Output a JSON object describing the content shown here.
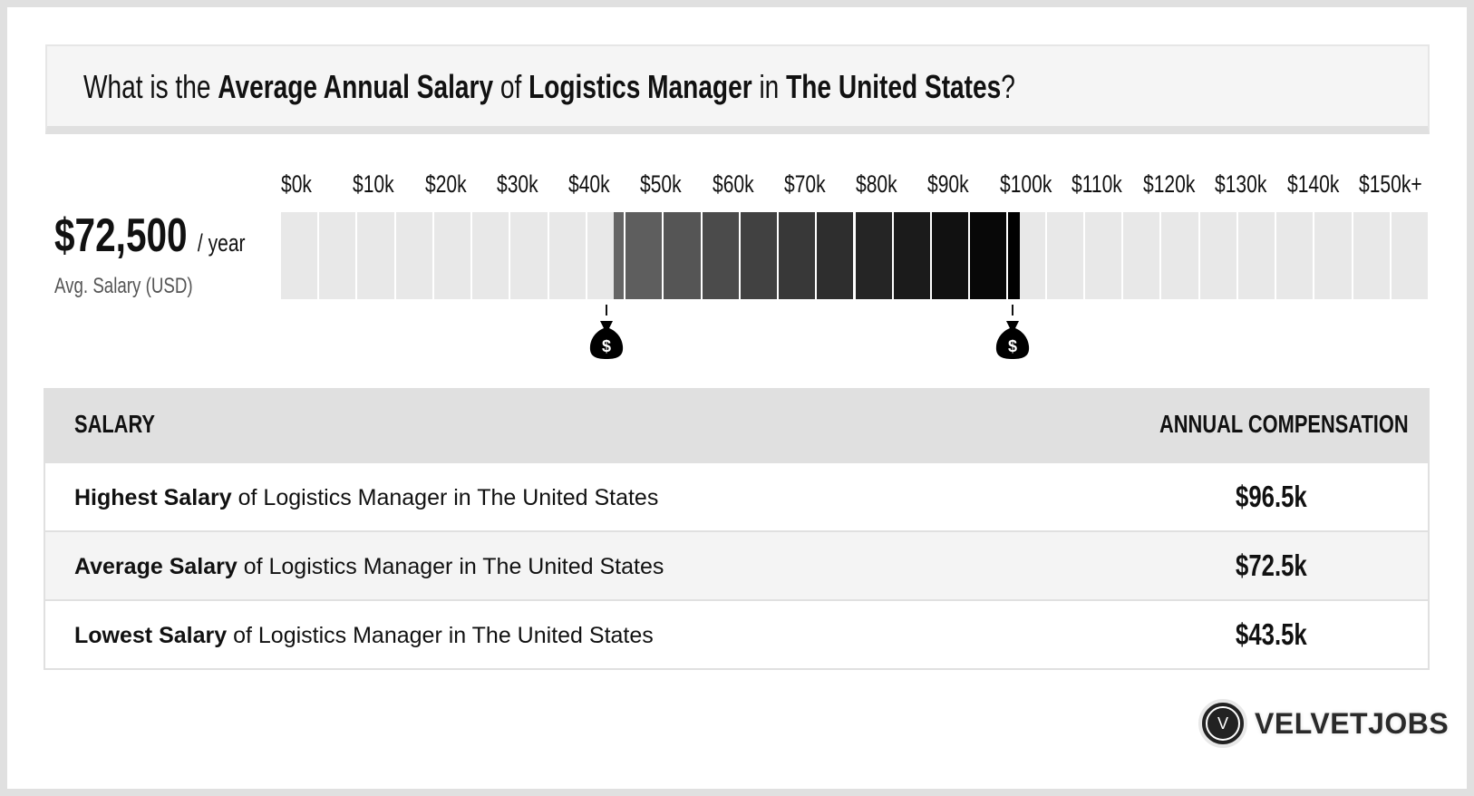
{
  "title": {
    "p1": "What is the ",
    "b1": "Average Annual Salary",
    "p2": " of ",
    "b2": "Logistics Manager",
    "p3": " in ",
    "b3": "The United States",
    "p4": "?"
  },
  "summary": {
    "value": "$72,500",
    "unit": "/ year",
    "label": "Avg. Salary (USD)"
  },
  "chart_data": {
    "type": "range-bar",
    "tick_labels": [
      "$0k",
      "$10k",
      "$20k",
      "$30k",
      "$40k",
      "$50k",
      "$60k",
      "$70k",
      "$80k",
      "$90k",
      "$100k",
      "$110k",
      "$120k",
      "$130k",
      "$140k",
      "$150k+"
    ],
    "xlim": [
      0,
      150000
    ],
    "segment_step": 5000,
    "range": {
      "low": 43500,
      "high": 96500
    },
    "gradient": [
      "#666666",
      "#000000"
    ],
    "markers": [
      {
        "value": 43500,
        "icon": "money-bag-icon"
      },
      {
        "value": 96500,
        "icon": "money-bag-icon"
      }
    ]
  },
  "table": {
    "headers": [
      "SALARY",
      "ANNUAL COMPENSATION"
    ],
    "rows": [
      {
        "bold": "Highest Salary",
        "rest": " of Logistics Manager in The United States",
        "value": "$96.5k"
      },
      {
        "bold": "Average Salary",
        "rest": " of Logistics Manager in The United States",
        "value": "$72.5k"
      },
      {
        "bold": "Lowest Salary",
        "rest": " of Logistics Manager in The United States",
        "value": "$43.5k"
      }
    ]
  },
  "logo": {
    "letter": "V",
    "text": "VELVETJOBS"
  }
}
